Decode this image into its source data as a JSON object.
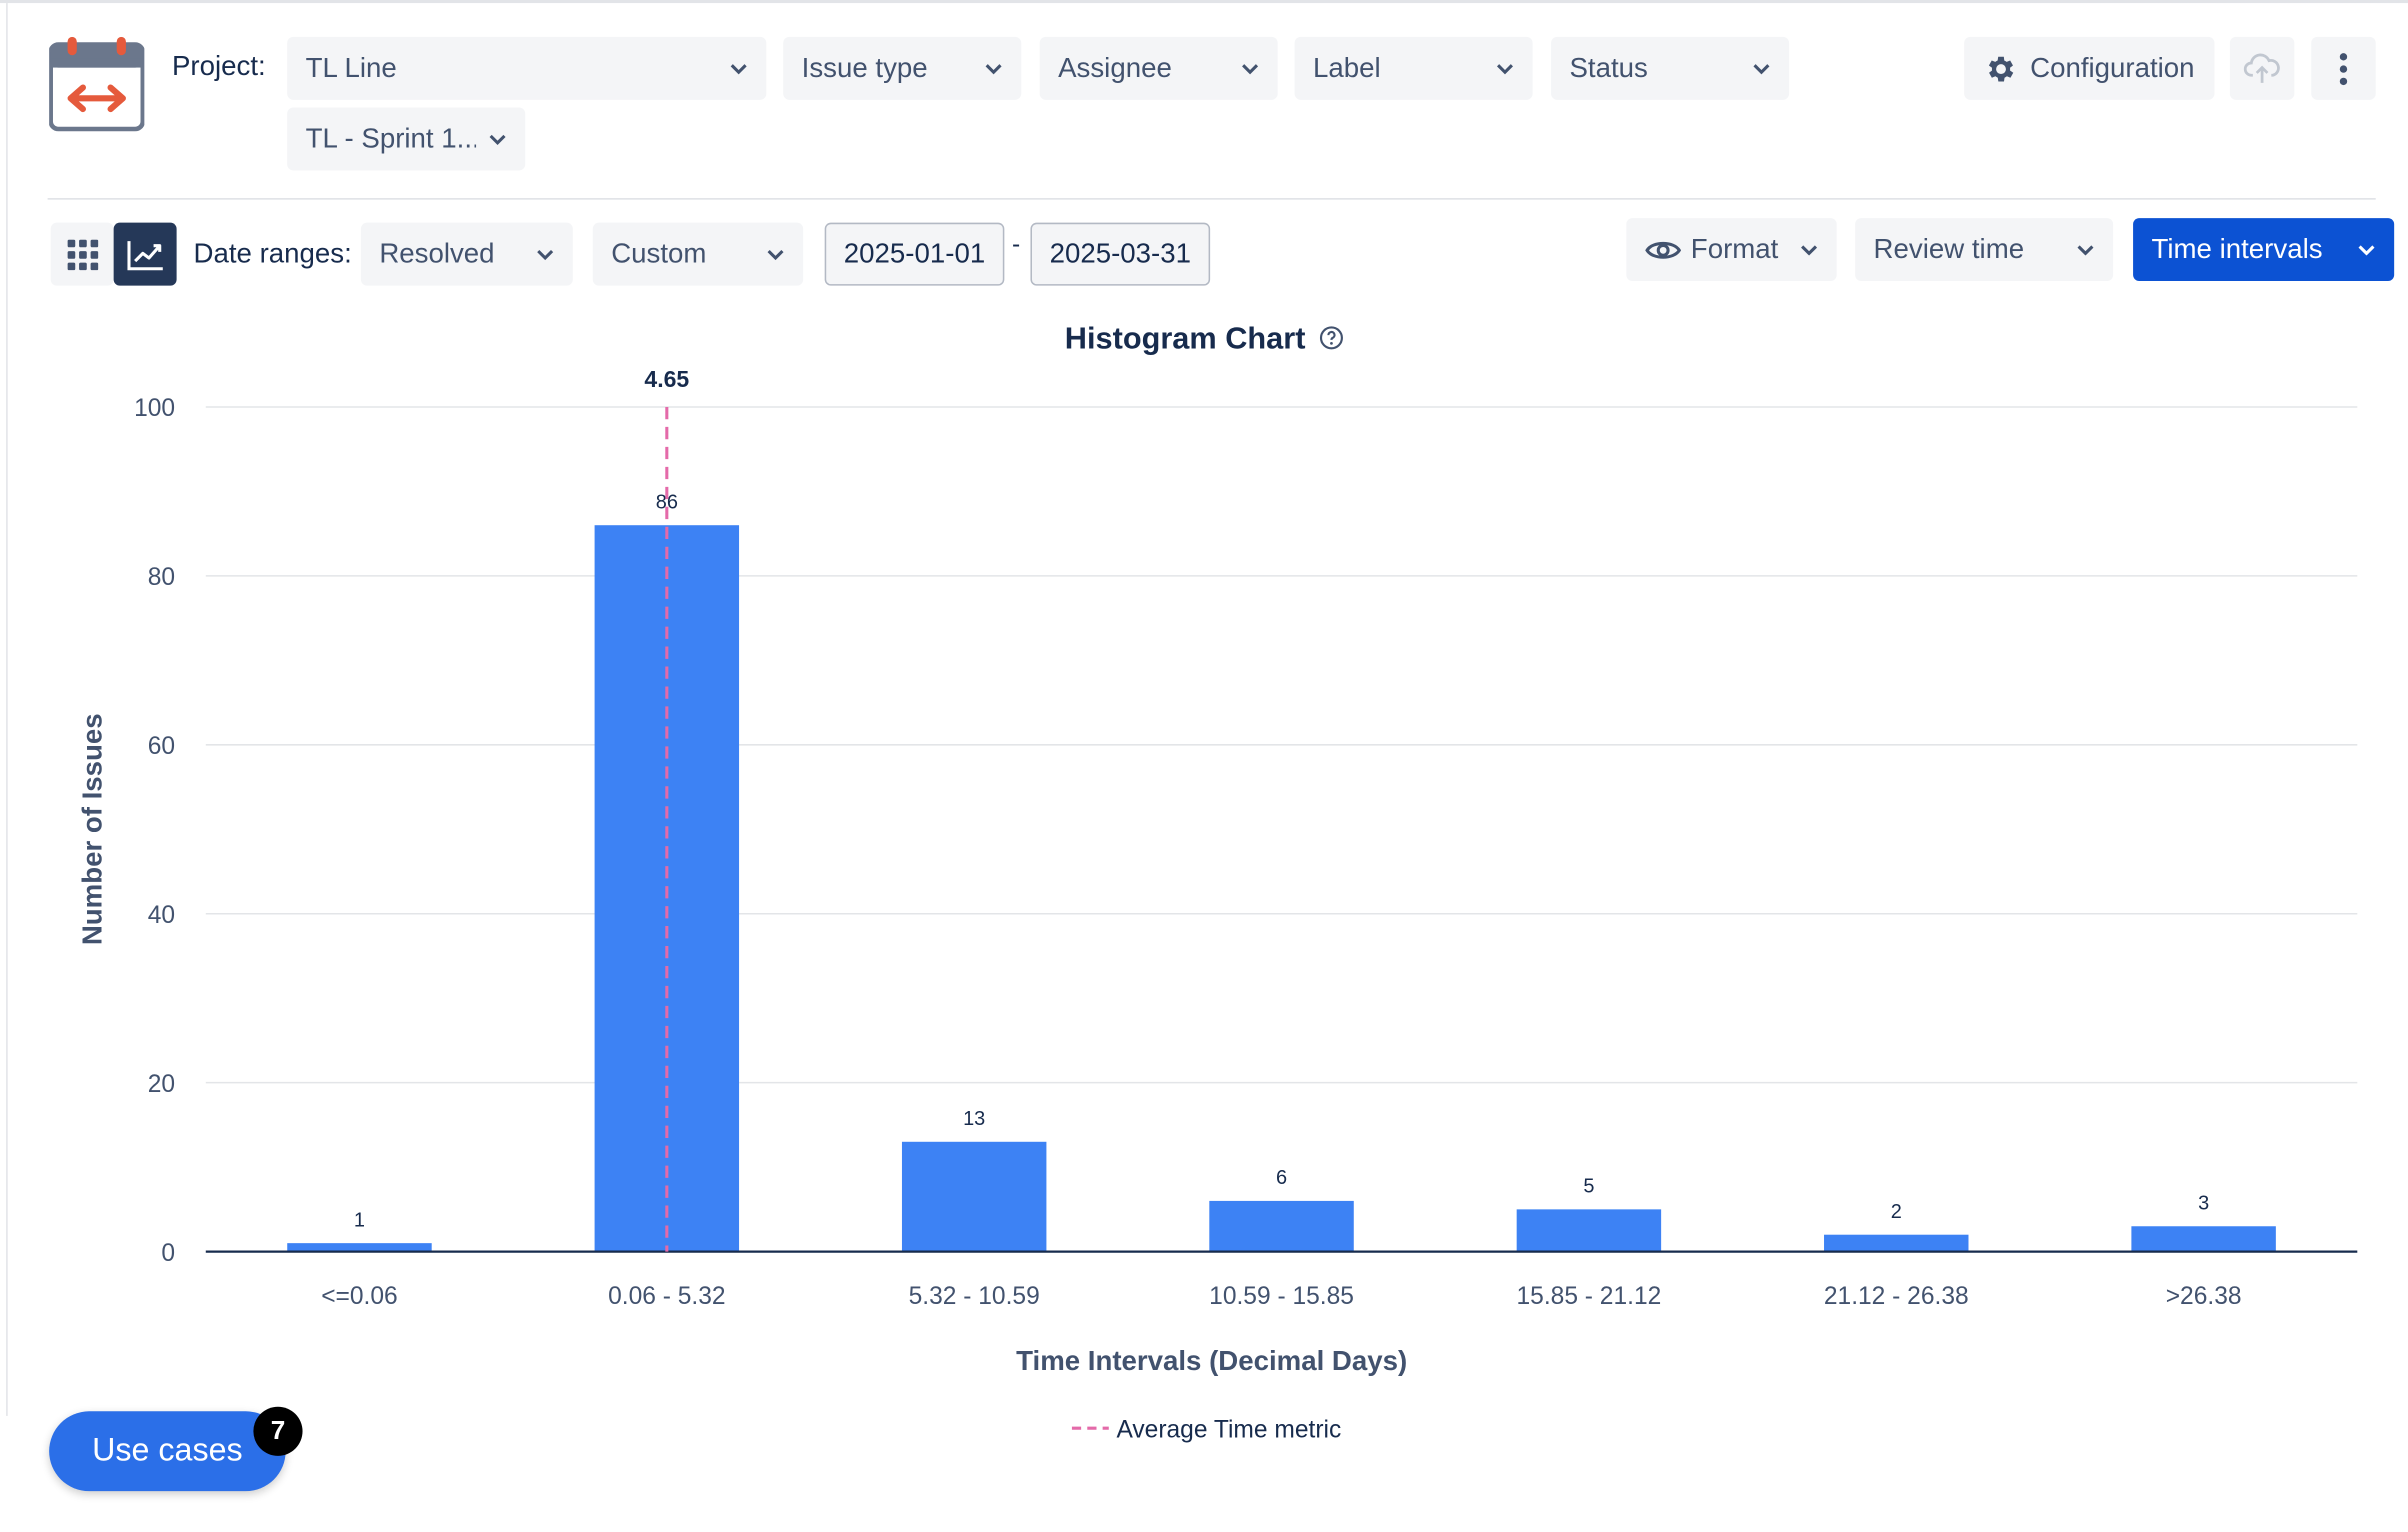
{
  "filters": {
    "project_label": "Project:",
    "project_value": "TL Line",
    "issue_type": "Issue type",
    "assignee": "Assignee",
    "label": "Label",
    "status": "Status",
    "sprint": "TL - Sprint 1..."
  },
  "toolbar": {
    "configuration": "Configuration"
  },
  "date_bar": {
    "label": "Date ranges:",
    "field": "Resolved",
    "preset": "Custom",
    "start": "2025-01-01",
    "dash": "-",
    "end": "2025-03-31",
    "format": "Format",
    "review_time": "Review time",
    "time_intervals": "Time intervals"
  },
  "use_cases": {
    "label": "Use cases",
    "count": "7"
  },
  "colors": {
    "bar": "#3d82f4",
    "average_line": "#e46aa9",
    "primary": "#0c52d3"
  },
  "chart_data": {
    "type": "bar",
    "title": "Histogram Chart",
    "xlabel": "Time Intervals (Decimal Days)",
    "ylabel": "Number of Issues",
    "categories": [
      "<=0.06",
      "0.06 - 5.32",
      "5.32 - 10.59",
      "10.59 - 15.85",
      "15.85 - 21.12",
      "21.12 - 26.38",
      ">26.38"
    ],
    "values": [
      1,
      86,
      13,
      6,
      5,
      2,
      3
    ],
    "ylim": [
      0,
      100
    ],
    "yticks": [
      0,
      20,
      40,
      60,
      80,
      100
    ],
    "grid": true,
    "average": {
      "label": "4.65",
      "category_index": 1,
      "legend": "Average Time metric"
    },
    "legend_position": "bottom-center"
  }
}
